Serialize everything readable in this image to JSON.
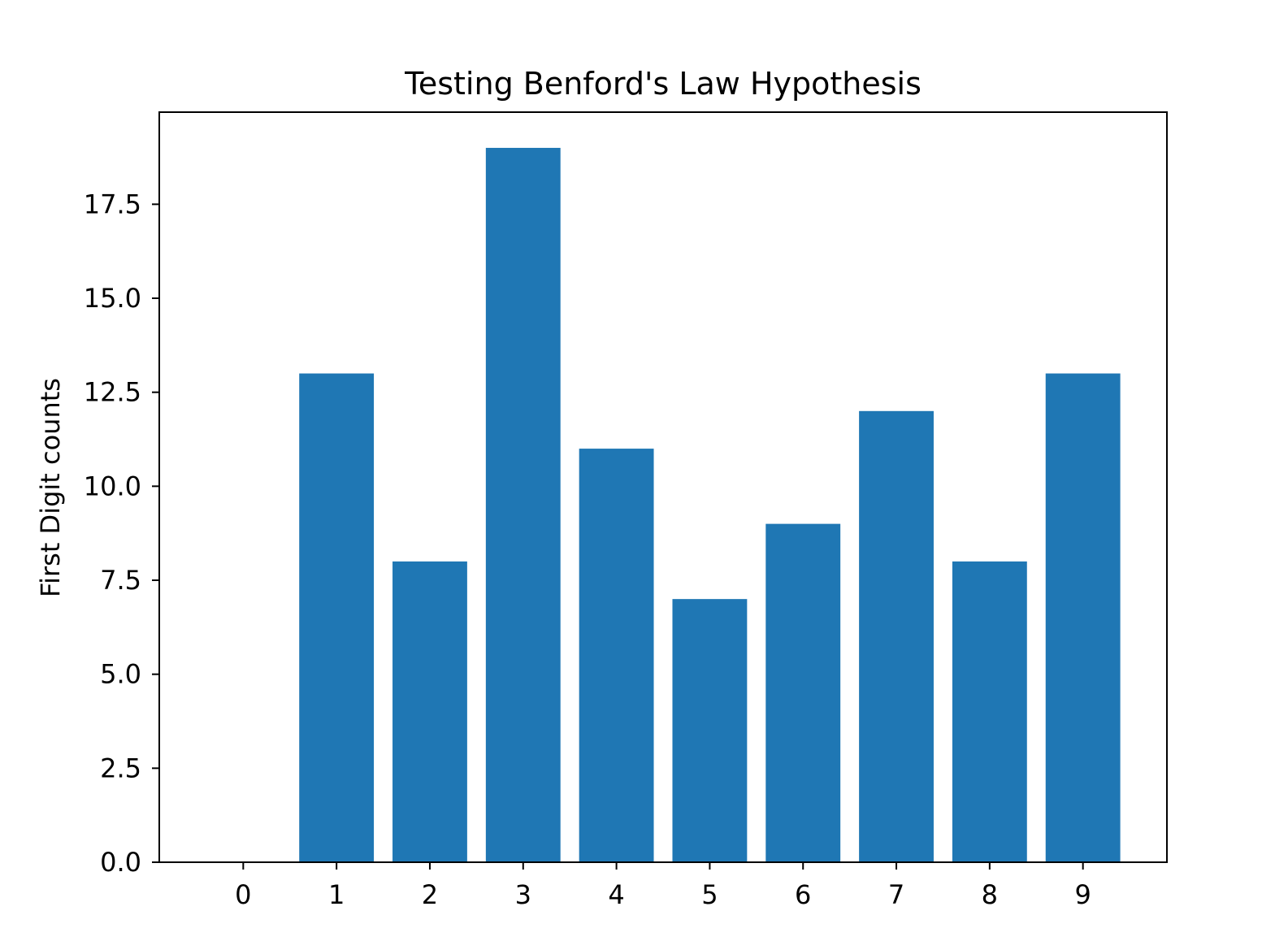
{
  "chart_data": {
    "type": "bar",
    "title": "Testing Benford's Law Hypothesis",
    "xlabel": "",
    "ylabel": "First Digit counts",
    "categories": [
      "0",
      "1",
      "2",
      "3",
      "4",
      "5",
      "6",
      "7",
      "8",
      "9"
    ],
    "values": [
      0,
      13,
      8,
      19,
      11,
      7,
      9,
      12,
      8,
      13
    ],
    "x_range": [
      -0.9,
      9.9
    ],
    "ylim": [
      0,
      19.95
    ],
    "y_ticks": [
      0.0,
      2.5,
      5.0,
      7.5,
      10.0,
      12.5,
      15.0,
      17.5
    ],
    "y_tick_labels": [
      "0.0",
      "2.5",
      "5.0",
      "7.5",
      "10.0",
      "12.5",
      "15.0",
      "17.5"
    ],
    "bar_color": "#1f77b4",
    "grid": false,
    "legend": "none"
  }
}
